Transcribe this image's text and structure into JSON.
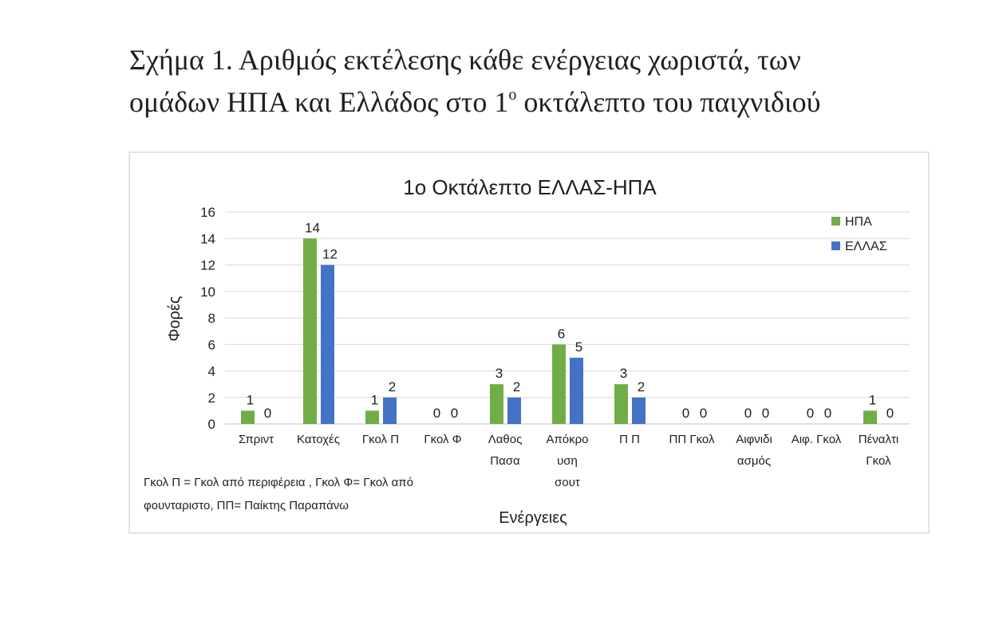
{
  "caption": {
    "line1": "Σχήμα 1. Αριθμός εκτέλεσης κάθε ενέργειας χωριστά, των",
    "line2_a": "ομάδων ΗΠΑ και Ελλάδος στο 1",
    "line2_sup": "ο",
    "line2_b": " οκτάλεπτο του παιχνιδιού"
  },
  "chart_data": {
    "type": "bar",
    "title": "1ο Οκτάλεπτο ΕΛΛΑΣ-ΗΠΑ",
    "xlabel": "Ενέργειες",
    "ylabel": "Φορές",
    "ylim": [
      0,
      16
    ],
    "yticks": [
      0,
      2,
      4,
      6,
      8,
      10,
      12,
      14,
      16
    ],
    "grid": true,
    "legend_position": "top-right",
    "categories": [
      [
        "Σπριντ"
      ],
      [
        "Κατοχές"
      ],
      [
        "Γκολ Π"
      ],
      [
        "Γκολ Φ"
      ],
      [
        "Λαθος",
        "Πασα"
      ],
      [
        "Απόκρο",
        "υση",
        "σουτ"
      ],
      [
        "Π Π"
      ],
      [
        "ΠΠ Γκολ"
      ],
      [
        "Αιφνιδι",
        "ασμός"
      ],
      [
        "Αιφ. Γκολ"
      ],
      [
        "Πέναλτι",
        "Γκολ"
      ]
    ],
    "series": [
      {
        "name": "ΗΠΑ",
        "color": "#70ad47",
        "values": [
          1,
          14,
          1,
          0,
          3,
          6,
          3,
          0,
          0,
          0,
          1
        ]
      },
      {
        "name": "ΕΛΛΑΣ",
        "color": "#4472c4",
        "values": [
          0,
          12,
          2,
          0,
          2,
          5,
          2,
          0,
          0,
          0,
          0
        ]
      }
    ],
    "footnote_lines": [
      "Γκολ Π = Γκολ από περιφέρεια , Γκολ Φ=  Γκολ από",
      "φουνταριστο, ΠΠ= Παίκτης  Παραπάνω"
    ]
  }
}
